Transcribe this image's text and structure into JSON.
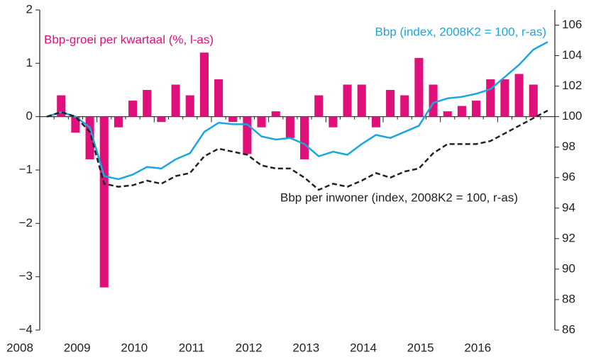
{
  "chart_data": {
    "type": "bar_line",
    "annotations": [
      "Bbp-groei per kwartaal (%, l-as)",
      "Bbp (index, 2008K2 = 100, r-as)",
      "Bbp per inwoner (index, 2008K2 = 100, r-as)"
    ],
    "categories": [
      "2008",
      null,
      null,
      null,
      "2009",
      null,
      null,
      null,
      "2010",
      null,
      null,
      null,
      "2011",
      null,
      null,
      null,
      "2012",
      null,
      null,
      null,
      "2013",
      null,
      null,
      null,
      "2014",
      null,
      null,
      null,
      "2015",
      null,
      null,
      null,
      "2016",
      null,
      null,
      null
    ],
    "series": [
      {
        "name": "Bbp-groei per kwartaal (%, l-as)",
        "kind": "bar",
        "axis": "y",
        "color": "#e0107a",
        "values": [
          null,
          0.4,
          -0.3,
          -0.8,
          -3.2,
          -0.2,
          0.3,
          0.5,
          -0.1,
          0.6,
          0.4,
          1.2,
          0.7,
          -0.1,
          -0.7,
          -0.2,
          0.1,
          -0.4,
          -0.8,
          0.4,
          -0.2,
          0.6,
          0.6,
          -0.2,
          0.5,
          0.4,
          1.1,
          0.6,
          0.1,
          0.2,
          0.3,
          0.7,
          0.7,
          0.8,
          0.6,
          null
        ]
      },
      {
        "name": "Bbp (index, 2008K2 = 100, r-as)",
        "kind": "line",
        "axis": "y2",
        "color": "#1aa7e0",
        "dash": false,
        "values": [
          100,
          100.3,
          100.0,
          99.3,
          96.1,
          95.9,
          96.2,
          96.7,
          96.6,
          97.2,
          97.6,
          99.0,
          99.6,
          99.5,
          99.5,
          98.7,
          98.5,
          98.6,
          98.2,
          97.4,
          97.7,
          97.5,
          98.2,
          98.8,
          98.6,
          99.0,
          99.4,
          100.9,
          101.2,
          101.3,
          101.5,
          101.8,
          102.6,
          103.4,
          104.4,
          104.9
        ]
      },
      {
        "name": "Bbp per inwoner (index, 2008K2 = 100, r-as)",
        "kind": "line",
        "axis": "y2",
        "color": "#222222",
        "dash": true,
        "values": [
          100,
          100.3,
          100.0,
          99.0,
          95.6,
          95.4,
          95.5,
          95.8,
          95.6,
          96.1,
          96.3,
          97.4,
          97.9,
          97.7,
          97.5,
          96.8,
          96.6,
          96.6,
          96.0,
          95.2,
          95.6,
          95.4,
          95.8,
          96.3,
          96.0,
          96.4,
          96.6,
          97.6,
          98.2,
          98.2,
          98.2,
          98.4,
          98.9,
          99.4,
          99.9,
          100.4
        ]
      }
    ],
    "ylim": [
      -4,
      2
    ],
    "yticks": [
      {
        "value": -4,
        "label": "−4"
      },
      {
        "value": -3,
        "label": "−3"
      },
      {
        "value": -2,
        "label": "−2"
      },
      {
        "value": -1,
        "label": "−1"
      },
      0,
      1,
      2
    ],
    "y2lim": [
      86,
      107
    ],
    "y2ticks": [
      86,
      88,
      90,
      92,
      94,
      96,
      98,
      100,
      102,
      104,
      106
    ]
  }
}
